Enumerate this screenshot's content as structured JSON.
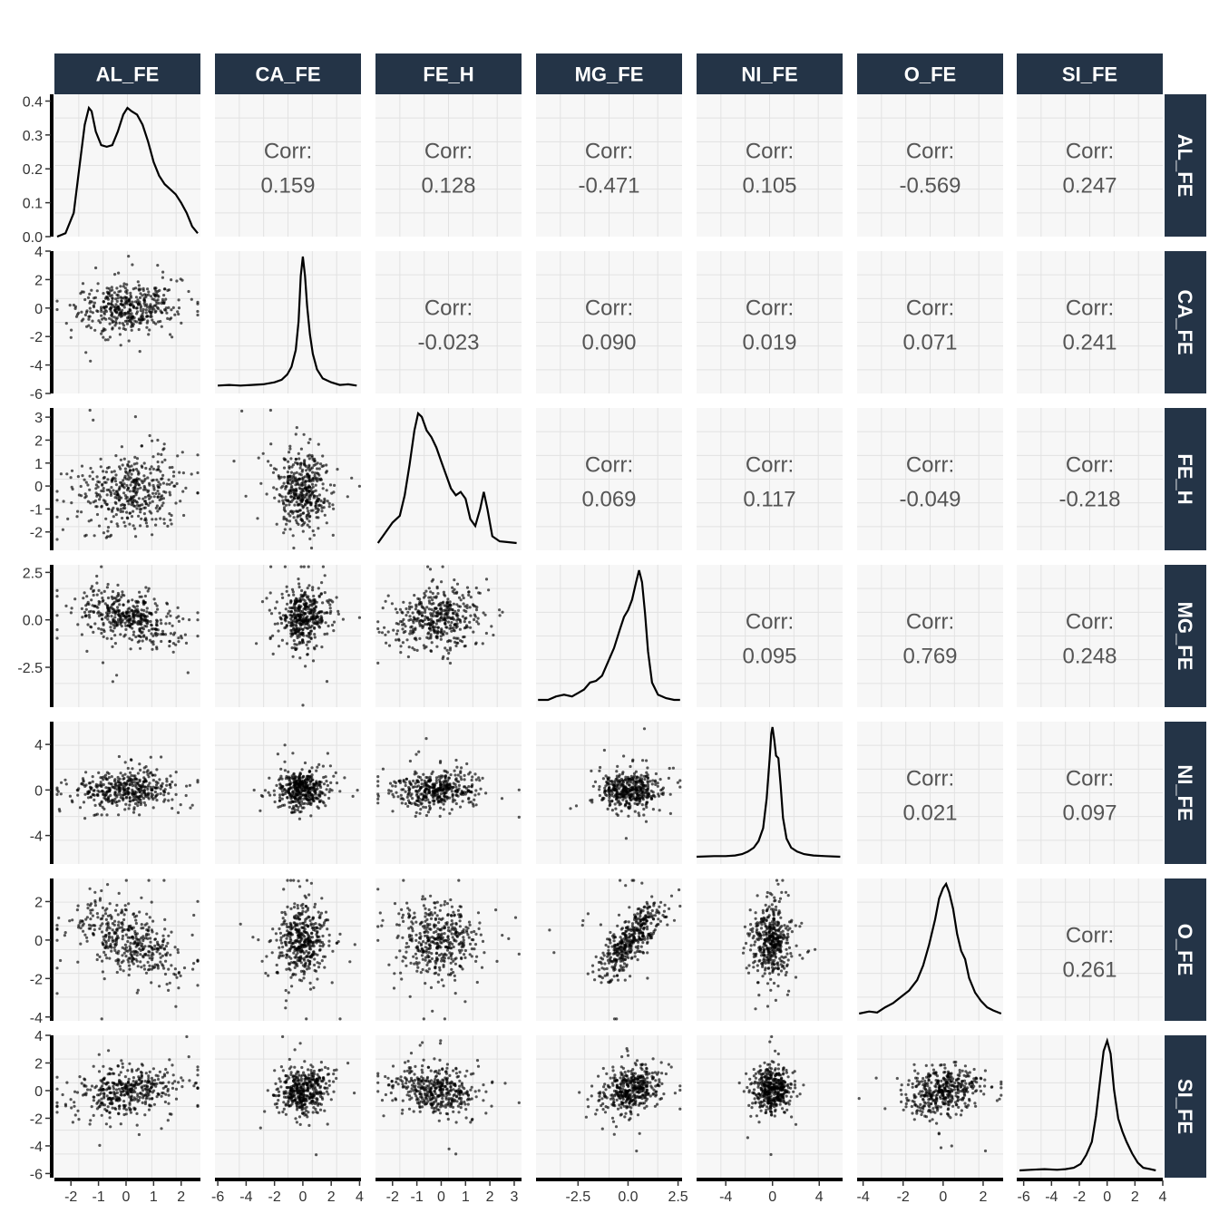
{
  "chart_data": {
    "type": "scatter",
    "title": "",
    "variables": [
      "AL_FE",
      "CA_FE",
      "FE_H",
      "MG_FE",
      "NI_FE",
      "O_FE",
      "SI_FE"
    ],
    "correlations": [
      {
        "row": "CA_FE",
        "col": "AL_FE",
        "label": "Corr:",
        "value": "0.159"
      },
      {
        "row": "FE_H",
        "col": "AL_FE",
        "label": "Corr:",
        "value": "0.128"
      },
      {
        "row": "MG_FE",
        "col": "AL_FE",
        "label": "Corr:",
        "value": "-0.471"
      },
      {
        "row": "NI_FE",
        "col": "AL_FE",
        "label": "Corr:",
        "value": "0.105"
      },
      {
        "row": "O_FE",
        "col": "AL_FE",
        "label": "Corr:",
        "value": "-0.569"
      },
      {
        "row": "SI_FE",
        "col": "AL_FE",
        "label": "Corr:",
        "value": "0.247"
      },
      {
        "row": "FE_H",
        "col": "CA_FE",
        "label": "Corr:",
        "value": "-0.023"
      },
      {
        "row": "MG_FE",
        "col": "CA_FE",
        "label": "Corr:",
        "value": "0.090"
      },
      {
        "row": "NI_FE",
        "col": "CA_FE",
        "label": "Corr:",
        "value": "0.019"
      },
      {
        "row": "O_FE",
        "col": "CA_FE",
        "label": "Corr:",
        "value": "0.071"
      },
      {
        "row": "SI_FE",
        "col": "CA_FE",
        "label": "Corr:",
        "value": "0.241"
      },
      {
        "row": "MG_FE",
        "col": "FE_H",
        "label": "Corr:",
        "value": "0.069"
      },
      {
        "row": "NI_FE",
        "col": "FE_H",
        "label": "Corr:",
        "value": "0.117"
      },
      {
        "row": "O_FE",
        "col": "FE_H",
        "label": "Corr:",
        "value": "-0.049"
      },
      {
        "row": "SI_FE",
        "col": "FE_H",
        "label": "Corr:",
        "value": "-0.218"
      },
      {
        "row": "NI_FE",
        "col": "MG_FE",
        "label": "Corr:",
        "value": "0.095"
      },
      {
        "row": "O_FE",
        "col": "MG_FE",
        "label": "Corr:",
        "value": "0.769"
      },
      {
        "row": "SI_FE",
        "col": "MG_FE",
        "label": "Corr:",
        "value": "0.248"
      },
      {
        "row": "O_FE",
        "col": "NI_FE",
        "label": "Corr:",
        "value": "0.021"
      },
      {
        "row": "SI_FE",
        "col": "NI_FE",
        "label": "Corr:",
        "value": "0.097"
      },
      {
        "row": "SI_FE",
        "col": "O_FE",
        "label": "Corr:",
        "value": "0.261"
      }
    ],
    "x_axes": [
      {
        "var": "AL_FE",
        "range": [
          -2.6,
          2.7
        ],
        "ticks": [
          "-2",
          "-1",
          "0",
          "1",
          "2"
        ],
        "tick_values": [
          -2,
          -1,
          0,
          1,
          2
        ]
      },
      {
        "var": "CA_FE",
        "range": [
          -6.2,
          4.1
        ],
        "ticks": [
          "-6",
          "-4",
          "-2",
          "0",
          "2",
          "4"
        ],
        "tick_values": [
          -6,
          -4,
          -2,
          0,
          2,
          4
        ]
      },
      {
        "var": "FE_H",
        "range": [
          -2.7,
          3.3
        ],
        "ticks": [
          "-2",
          "-1",
          "0",
          "1",
          "2",
          "3"
        ],
        "tick_values": [
          -2,
          -1,
          0,
          1,
          2,
          3
        ]
      },
      {
        "var": "MG_FE",
        "range": [
          -4.6,
          2.7
        ],
        "ticks": [
          "-2.5",
          "0.0",
          "2.5"
        ],
        "tick_values": [
          -2.5,
          0,
          2.5
        ]
      },
      {
        "var": "NI_FE",
        "range": [
          -6.5,
          6.0
        ],
        "ticks": [
          "-4",
          "0",
          "4"
        ],
        "tick_values": [
          -4,
          0,
          4
        ]
      },
      {
        "var": "O_FE",
        "range": [
          -4.3,
          3.0
        ],
        "ticks": [
          "-4",
          "-2",
          "0",
          "2"
        ],
        "tick_values": [
          -4,
          -2,
          0,
          2
        ]
      },
      {
        "var": "SI_FE",
        "range": [
          -6.5,
          4.0
        ],
        "ticks": [
          "-6",
          "-4",
          "-2",
          "0",
          "2",
          "4"
        ],
        "tick_values": [
          -6,
          -4,
          -2,
          0,
          2,
          4
        ]
      }
    ],
    "y_axes": [
      {
        "var": "AL_FE",
        "range": [
          0,
          0.42
        ],
        "ticks": [
          "0.0",
          "0.1",
          "0.2",
          "0.3",
          "0.4"
        ],
        "tick_values": [
          0,
          0.1,
          0.2,
          0.3,
          0.4
        ]
      },
      {
        "var": "CA_FE",
        "range": [
          -6.0,
          4.0
        ],
        "ticks": [
          "-6",
          "-4",
          "-2",
          "0",
          "2",
          "4"
        ],
        "tick_values": [
          -6,
          -4,
          -2,
          0,
          2,
          4
        ]
      },
      {
        "var": "FE_H",
        "range": [
          -2.8,
          3.4
        ],
        "ticks": [
          "-2",
          "-1",
          "0",
          "1",
          "2",
          "3"
        ],
        "tick_values": [
          -2,
          -1,
          0,
          1,
          2,
          3
        ]
      },
      {
        "var": "MG_FE",
        "range": [
          -4.6,
          2.9
        ],
        "ticks": [
          "-2.5",
          "0.0",
          "2.5"
        ],
        "tick_values": [
          -2.5,
          0,
          2.5
        ]
      },
      {
        "var": "NI_FE",
        "range": [
          -6.5,
          6.0
        ],
        "ticks": [
          "-4",
          "0",
          "4"
        ],
        "tick_values": [
          -4,
          0,
          4
        ]
      },
      {
        "var": "O_FE",
        "range": [
          -4.2,
          3.2
        ],
        "ticks": [
          "-4",
          "-2",
          "0",
          "2"
        ],
        "tick_values": [
          -4,
          -2,
          0,
          2
        ]
      },
      {
        "var": "SI_FE",
        "range": [
          -6.3,
          4.0
        ],
        "ticks": [
          "-6",
          "-4",
          "-2",
          "0",
          "2",
          "4"
        ],
        "tick_values": [
          -6,
          -4,
          -2,
          0,
          2,
          4
        ]
      }
    ],
    "densities": [
      {
        "var": "AL_FE",
        "peak": 0.38,
        "x": [
          -2.5,
          -2.2,
          -1.9,
          -1.7,
          -1.5,
          -1.35,
          -1.25,
          -1.1,
          -0.9,
          -0.7,
          -0.5,
          -0.3,
          -0.1,
          0.05,
          0.2,
          0.4,
          0.6,
          0.8,
          1.0,
          1.2,
          1.4,
          1.6,
          1.8,
          2.0,
          2.2,
          2.4,
          2.6
        ],
        "y": [
          0.0,
          0.01,
          0.07,
          0.2,
          0.33,
          0.38,
          0.37,
          0.31,
          0.27,
          0.265,
          0.27,
          0.31,
          0.36,
          0.38,
          0.37,
          0.36,
          0.33,
          0.28,
          0.22,
          0.18,
          0.155,
          0.14,
          0.125,
          0.1,
          0.07,
          0.03,
          0.01
        ]
      },
      {
        "var": "CA_FE",
        "peak": 1.0,
        "x": [
          -6.0,
          -5.2,
          -4.4,
          -3.6,
          -2.8,
          -2.0,
          -1.5,
          -1.1,
          -0.8,
          -0.5,
          -0.3,
          -0.15,
          0.0,
          0.15,
          0.3,
          0.5,
          0.7,
          1.0,
          1.4,
          2.0,
          2.6,
          3.2,
          3.8
        ],
        "y": [
          0.005,
          0.01,
          0.005,
          0.01,
          0.015,
          0.03,
          0.05,
          0.09,
          0.15,
          0.28,
          0.5,
          0.85,
          1.0,
          0.85,
          0.62,
          0.4,
          0.25,
          0.13,
          0.06,
          0.03,
          0.01,
          0.015,
          0.005
        ]
      },
      {
        "var": "FE_H",
        "peak": 0.38,
        "x": [
          -2.6,
          -2.3,
          -2.0,
          -1.7,
          -1.5,
          -1.3,
          -1.1,
          -0.95,
          -0.8,
          -0.6,
          -0.4,
          -0.2,
          0.0,
          0.2,
          0.4,
          0.6,
          0.8,
          1.0,
          1.2,
          1.4,
          1.6,
          1.75,
          1.9,
          2.1,
          2.4,
          2.7,
          3.1
        ],
        "y": [
          0.0,
          0.03,
          0.06,
          0.08,
          0.14,
          0.23,
          0.33,
          0.38,
          0.37,
          0.33,
          0.31,
          0.28,
          0.24,
          0.2,
          0.16,
          0.14,
          0.15,
          0.13,
          0.07,
          0.05,
          0.1,
          0.15,
          0.1,
          0.02,
          0.005,
          0.003,
          0.0
        ]
      },
      {
        "var": "MG_FE",
        "peak": 0.75,
        "x": [
          -4.5,
          -4.0,
          -3.6,
          -3.2,
          -2.8,
          -2.5,
          -2.2,
          -1.9,
          -1.6,
          -1.3,
          -1.0,
          -0.7,
          -0.4,
          -0.2,
          0.0,
          0.2,
          0.4,
          0.55,
          0.7,
          0.85,
          1.0,
          1.2,
          1.5,
          1.9,
          2.3,
          2.6
        ],
        "y": [
          0.0,
          0.0,
          0.02,
          0.03,
          0.02,
          0.04,
          0.06,
          0.1,
          0.11,
          0.14,
          0.22,
          0.3,
          0.41,
          0.48,
          0.52,
          0.58,
          0.68,
          0.75,
          0.68,
          0.5,
          0.28,
          0.1,
          0.03,
          0.01,
          0.0,
          0.0
        ]
      },
      {
        "var": "NI_FE",
        "peak": 1.0,
        "x": [
          -6.5,
          -5.0,
          -4.0,
          -3.2,
          -2.6,
          -2.1,
          -1.6,
          -1.2,
          -0.8,
          -0.5,
          -0.25,
          -0.1,
          0.0,
          0.15,
          0.3,
          0.5,
          0.7,
          0.9,
          1.2,
          1.6,
          2.1,
          2.7,
          3.5,
          4.5,
          5.8
        ],
        "y": [
          0.0,
          0.005,
          0.005,
          0.01,
          0.02,
          0.04,
          0.07,
          0.12,
          0.22,
          0.45,
          0.75,
          0.95,
          1.0,
          0.9,
          0.78,
          0.76,
          0.55,
          0.3,
          0.14,
          0.07,
          0.04,
          0.02,
          0.01,
          0.005,
          0.0
        ]
      },
      {
        "var": "O_FE",
        "peak": 0.62,
        "x": [
          -4.2,
          -3.7,
          -3.3,
          -2.9,
          -2.5,
          -2.1,
          -1.7,
          -1.3,
          -1.0,
          -0.7,
          -0.4,
          -0.2,
          0.0,
          0.15,
          0.3,
          0.5,
          0.7,
          0.9,
          1.1,
          1.3,
          1.6,
          1.9,
          2.2,
          2.5,
          2.9
        ],
        "y": [
          0.0,
          0.01,
          0.005,
          0.03,
          0.05,
          0.08,
          0.11,
          0.16,
          0.23,
          0.33,
          0.45,
          0.55,
          0.6,
          0.62,
          0.58,
          0.5,
          0.38,
          0.3,
          0.26,
          0.17,
          0.1,
          0.06,
          0.03,
          0.015,
          0.0
        ]
      },
      {
        "var": "SI_FE",
        "peak": 1.0,
        "x": [
          -6.3,
          -5.5,
          -4.5,
          -3.6,
          -3.0,
          -2.4,
          -1.9,
          -1.5,
          -1.1,
          -0.8,
          -0.5,
          -0.25,
          0.0,
          0.25,
          0.5,
          0.8,
          1.1,
          1.4,
          1.8,
          2.2,
          2.6,
          3.1,
          3.5
        ],
        "y": [
          0.0,
          0.005,
          0.01,
          0.005,
          0.01,
          0.02,
          0.05,
          0.12,
          0.22,
          0.42,
          0.7,
          0.92,
          1.0,
          0.9,
          0.62,
          0.4,
          0.3,
          0.22,
          0.13,
          0.06,
          0.02,
          0.01,
          0.0
        ]
      }
    ]
  }
}
